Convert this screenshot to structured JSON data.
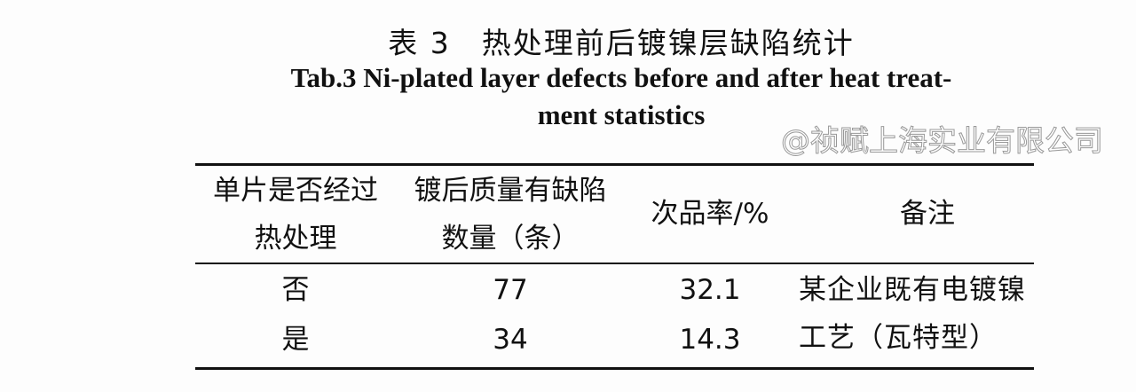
{
  "caption": {
    "cn": "表 3　热处理前后镀镍层缺陷统计",
    "en_line1": "Tab.3 Ni-plated layer defects before and after heat treat-",
    "en_line2": "ment statistics"
  },
  "table": {
    "headers": [
      "单片是否经过热处理",
      "镀后质量有缺陷数量（条）",
      "次品率/%",
      "备注"
    ],
    "rows": [
      [
        "否",
        "77",
        "32.1"
      ],
      [
        "是",
        "34",
        "14.3"
      ]
    ],
    "remark": "某企业既有电镀镍工艺（瓦特型）"
  },
  "watermark": "@祯赋上海实业有限公司"
}
